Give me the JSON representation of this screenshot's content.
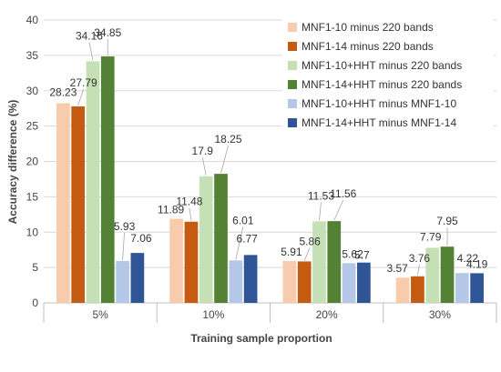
{
  "chart_data": {
    "type": "bar",
    "xlabel": "Training sample proportion",
    "ylabel": "Accuracy difference (%)",
    "ylim": [
      0,
      40
    ],
    "yticks": [
      0,
      5,
      10,
      15,
      20,
      25,
      30,
      35,
      40
    ],
    "grid": true,
    "legend_position": "top-right",
    "categories": [
      "5%",
      "10%",
      "20%",
      "30%"
    ],
    "series": [
      {
        "name": "MNF1-10 minus 220 bands",
        "color": "#f8cbad",
        "values": [
          28.23,
          11.89,
          5.91,
          3.57
        ]
      },
      {
        "name": "MNF1-14 minus 220 bands",
        "color": "#c55a11",
        "values": [
          27.79,
          11.48,
          5.86,
          3.76
        ]
      },
      {
        "name": "MNF1-10+HHT minus 220 bands",
        "color": "#c5e0b4",
        "values": [
          34.16,
          17.9,
          11.53,
          7.79
        ]
      },
      {
        "name": "MNF1-14+HHT minus 220 bands",
        "color": "#548235",
        "values": [
          34.85,
          18.25,
          11.56,
          7.95
        ]
      },
      {
        "name": "MNF1-10+HHT minus MNF1-10",
        "color": "#b4c7e7",
        "values": [
          5.93,
          6.01,
          5.62,
          4.22
        ]
      },
      {
        "name": "MNF1-14+HHT minus MNF1-14",
        "color": "#2f5597",
        "values": [
          7.06,
          6.77,
          5.7,
          4.19
        ]
      }
    ],
    "data_labels": [
      [
        "28.23",
        "27.79",
        "34.16",
        "34.85",
        "5.93",
        "7.06"
      ],
      [
        "11.89",
        "11.48",
        "17.9",
        "18.25",
        "6.01",
        "6.77"
      ],
      [
        "5.91",
        "5.86",
        "11.53",
        "11.56",
        "5.62",
        "5.7"
      ],
      [
        "3.57",
        "3.76",
        "7.79",
        "7.95",
        "4.22",
        "4.19"
      ]
    ]
  }
}
